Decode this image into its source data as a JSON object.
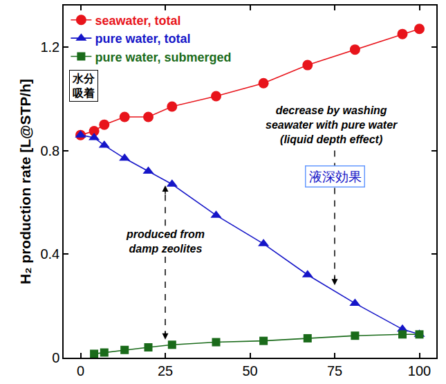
{
  "chart_data": {
    "type": "scatter",
    "ylabel": "H₂ production rate [L@STP/h]",
    "xlim": [
      -5,
      105
    ],
    "xticks": [
      0,
      25,
      50,
      75,
      100
    ],
    "ylim": [
      0,
      1.36
    ],
    "yticks": [
      0,
      0.4,
      0.8,
      1.2
    ],
    "grid": false,
    "legend": "top-left",
    "series": [
      {
        "name": "seawater, total",
        "color": "#e8141b",
        "marker": "circle",
        "line_style": "solid",
        "x": [
          0,
          4,
          7,
          13,
          20,
          27,
          40,
          54,
          67,
          81,
          95,
          100
        ],
        "values": [
          0.86,
          0.875,
          0.9,
          0.93,
          0.93,
          0.97,
          1.01,
          1.06,
          1.13,
          1.19,
          1.25,
          1.27
        ]
      },
      {
        "name": "pure water, total",
        "color": "#1515c8",
        "marker": "triangle",
        "line_style": "solid",
        "x": [
          0,
          4,
          7,
          13,
          20,
          27,
          40,
          54,
          67,
          81,
          95,
          100
        ],
        "values": [
          0.86,
          0.85,
          0.82,
          0.77,
          0.72,
          0.67,
          0.55,
          0.44,
          0.32,
          0.21,
          0.11,
          0.09
        ]
      },
      {
        "name": "pure water, submerged",
        "color": "#1a6b1a",
        "marker": "square",
        "line_style": "solid",
        "x": [
          4,
          7,
          13,
          20,
          27,
          40,
          54,
          67,
          81,
          95,
          100
        ],
        "values": [
          0.015,
          0.02,
          0.03,
          0.04,
          0.05,
          0.06,
          0.065,
          0.075,
          0.085,
          0.09,
          0.09
        ]
      }
    ],
    "annotations": [
      "水分\n吸着",
      "decrease by washing\nseawater with pure water\n(liquid depth effect)",
      "液深効果",
      "produced from\ndamp zeolites"
    ]
  }
}
